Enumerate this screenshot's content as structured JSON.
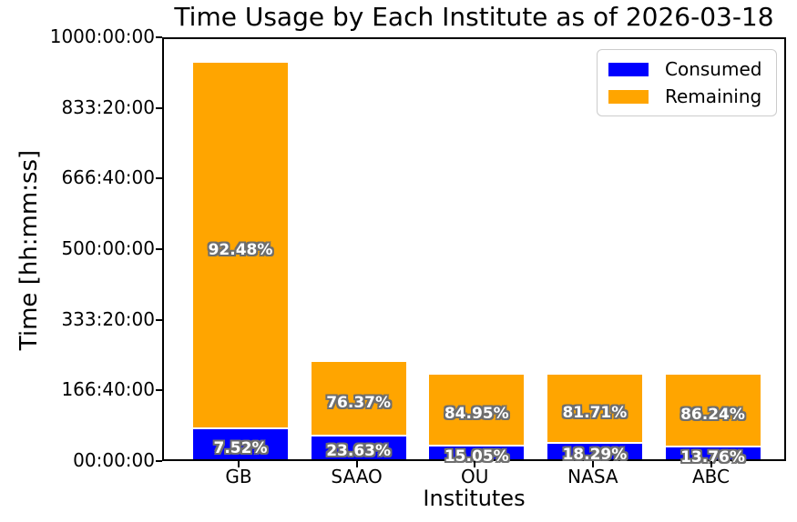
{
  "chart_data": {
    "type": "bar",
    "stacked": true,
    "title": "Time Usage by Each Institute as of 2026-03-18",
    "xlabel": "Institutes",
    "ylabel": "Time [hh:mm:ss]",
    "categories": [
      "GB",
      "SAAO",
      "OU",
      "NASA",
      "ABC"
    ],
    "series": [
      {
        "name": "Consumed",
        "color": "#0000ff",
        "values_hours": [
          70.3,
          54.3,
          30.1,
          36.6,
          27.5
        ],
        "pct_labels": [
          "7.52%",
          "23.63%",
          "15.05%",
          "18.29%",
          "13.76%"
        ]
      },
      {
        "name": "Remaining",
        "color": "#ffa500",
        "values_hours": [
          864.7,
          175.7,
          169.9,
          163.4,
          172.5
        ],
        "pct_labels": [
          "92.48%",
          "76.37%",
          "84.95%",
          "81.71%",
          "86.24%"
        ]
      }
    ],
    "totals_hours": [
      935,
      230,
      200,
      200,
      200
    ],
    "ylim": [
      0,
      1000
    ],
    "yticks": [
      {
        "hours": 0,
        "label": "00:00:00"
      },
      {
        "hours": 166.6667,
        "label": "166:40:00"
      },
      {
        "hours": 333.3333,
        "label": "333:20:00"
      },
      {
        "hours": 500,
        "label": "500:00:00"
      },
      {
        "hours": 666.6667,
        "label": "666:40:00"
      },
      {
        "hours": 833.3333,
        "label": "833:20:00"
      },
      {
        "hours": 1000,
        "label": "1000:00:00"
      }
    ],
    "grid": false,
    "legend": {
      "position": "upper-right",
      "entries": [
        "Consumed",
        "Remaining"
      ]
    },
    "colors": {
      "consumed": "#0000ff",
      "remaining": "#ffa500",
      "label_text": "#ffffff",
      "label_outline": "#6e6e6e",
      "axes": "#000000",
      "background": "#ffffff"
    }
  }
}
